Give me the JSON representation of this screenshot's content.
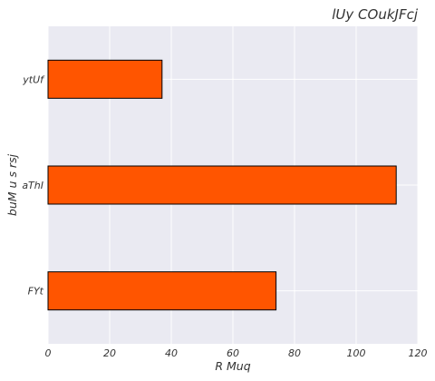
{
  "chart_data": {
    "type": "bar",
    "orientation": "horizontal",
    "title": "lUy COukJFcj",
    "xlabel": "R Muq",
    "ylabel": "buM u s  rsj",
    "categories": [
      "FYt",
      "aThI",
      "ytUf"
    ],
    "values": [
      74,
      113,
      37
    ],
    "xlim": [
      0,
      120
    ],
    "xticks": [
      "0",
      "20",
      "40",
      "60",
      "80",
      "100",
      "120"
    ],
    "grid": true,
    "colors": {
      "bar": "#ff5500",
      "bar_edge": "#000000",
      "plot_bg": "#eaeaf2",
      "grid": "#ffffff"
    }
  }
}
